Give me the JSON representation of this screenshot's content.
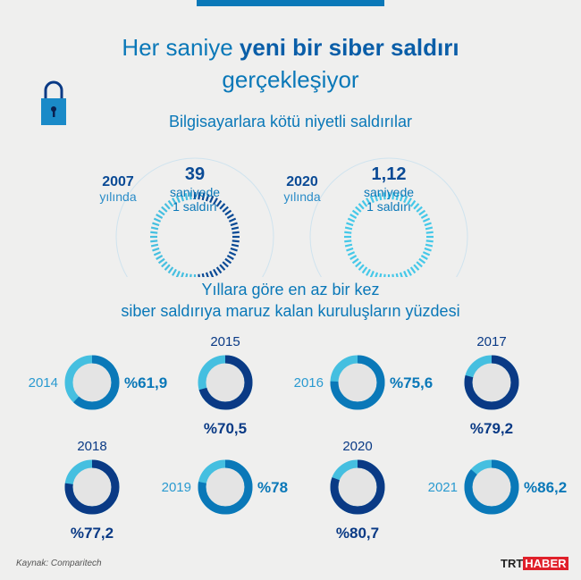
{
  "title": {
    "part1": "Her saniye ",
    "bold": "yeni bir siber saldırı",
    "line2": "gerçekleşiyor"
  },
  "attacks": {
    "subtitle": "Bilgisayarlara kötü niyetli saldırılar",
    "items": [
      {
        "year": "2007",
        "year_suffix": "yılında",
        "value": "39",
        "unit": "saniyede",
        "desc": "1 saldırı"
      },
      {
        "year": "2020",
        "year_suffix": "yılında",
        "value": "1,12",
        "unit": "saniyede",
        "desc": "1 saldırı"
      }
    ]
  },
  "chart_data": {
    "type": "pie",
    "title_line1": "Yıllara göre en az bir kez",
    "title_line2": "siber saldırıya maruz kalan kuruluşların yüzdesi",
    "categories": [
      "2014",
      "2015",
      "2016",
      "2017",
      "2018",
      "2019",
      "2020",
      "2021"
    ],
    "values": [
      61.9,
      70.5,
      75.6,
      79.2,
      77.2,
      78,
      80.7,
      86.2
    ],
    "labels": [
      "%61,9",
      "%70,5",
      "%75,6",
      "%79,2",
      "%77,2",
      "%78",
      "%80,7",
      "%86,2"
    ],
    "colors": {
      "remainder": "#45bfe0",
      "medium": "#0a78b8",
      "dark": "#0a3a85"
    }
  },
  "source": "Kaynak: Comparitech",
  "logo": {
    "trt": "TRT",
    "haber": "HABER"
  }
}
